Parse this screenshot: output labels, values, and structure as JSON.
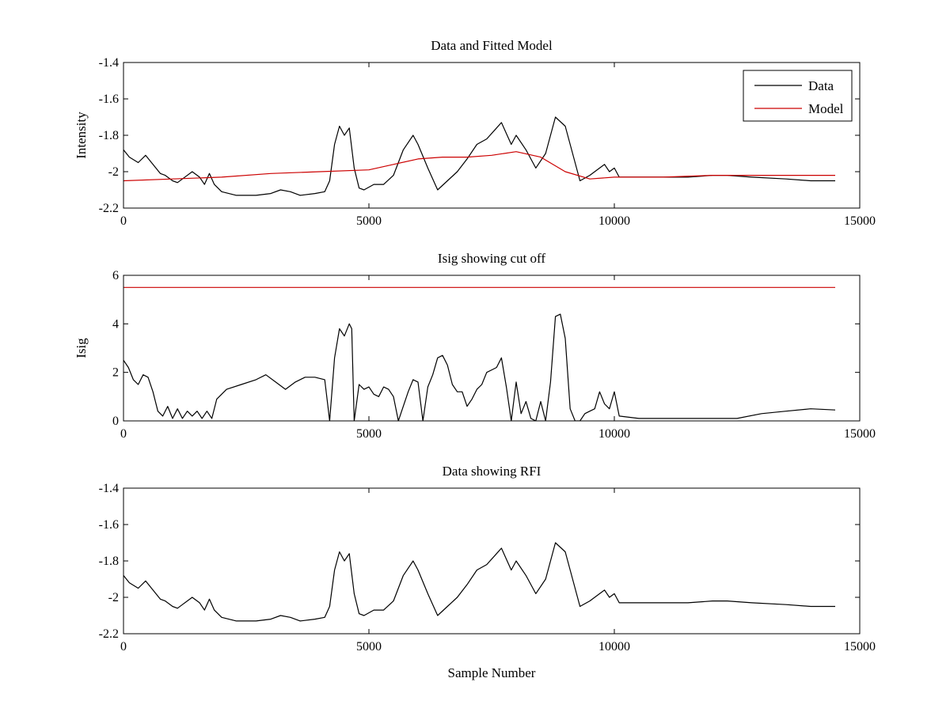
{
  "chart_data": [
    {
      "type": "line",
      "title": "Data and Fitted Model",
      "xlabel": "",
      "ylabel": "Intensity",
      "xlim": [
        0,
        15000
      ],
      "ylim": [
        -2.2,
        -1.4
      ],
      "xticks": [
        0,
        5000,
        10000,
        15000
      ],
      "yticks": [
        -2.2,
        -2,
        -1.8,
        -1.6,
        -1.4
      ],
      "xtick_labels": [
        "0",
        "5000",
        "10000",
        "15000"
      ],
      "ytick_labels": [
        "-2.2",
        "-2",
        "-1.8",
        "-1.6",
        "-1.4"
      ],
      "legend": {
        "location": "top-right",
        "entries": [
          "Data",
          "Model"
        ]
      },
      "grid": false,
      "series": [
        {
          "name": "Data",
          "color": "#000000",
          "x": [
            0,
            120,
            300,
            450,
            600,
            750,
            850,
            1000,
            1100,
            1200,
            1400,
            1550,
            1650,
            1750,
            1850,
            2000,
            2300,
            2700,
            3000,
            3200,
            3400,
            3600,
            3900,
            4100,
            4200,
            4300,
            4400,
            4500,
            4600,
            4700,
            4800,
            4900,
            5100,
            5300,
            5500,
            5700,
            5900,
            6000,
            6200,
            6400,
            6600,
            6800,
            7000,
            7200,
            7400,
            7600,
            7700,
            7800,
            7900,
            8000,
            8200,
            8400,
            8600,
            8800,
            9000,
            9100,
            9300,
            9500,
            9700,
            9800,
            9900,
            10000,
            10100,
            10500,
            11000,
            11500,
            12000,
            12300,
            12800,
            13500,
            14000,
            14500
          ],
          "y": [
            -1.88,
            -1.92,
            -1.95,
            -1.91,
            -1.96,
            -2.01,
            -2.02,
            -2.05,
            -2.06,
            -2.04,
            -2.0,
            -2.03,
            -2.07,
            -2.01,
            -2.07,
            -2.11,
            -2.13,
            -2.13,
            -2.12,
            -2.1,
            -2.11,
            -2.13,
            -2.12,
            -2.11,
            -2.05,
            -1.85,
            -1.75,
            -1.8,
            -1.76,
            -1.98,
            -2.09,
            -2.1,
            -2.07,
            -2.07,
            -2.02,
            -1.88,
            -1.8,
            -1.85,
            -1.98,
            -2.1,
            -2.05,
            -2.0,
            -1.93,
            -1.85,
            -1.82,
            -1.76,
            -1.73,
            -1.79,
            -1.85,
            -1.8,
            -1.88,
            -1.98,
            -1.9,
            -1.7,
            -1.75,
            -1.85,
            -2.05,
            -2.02,
            -1.98,
            -1.96,
            -2.0,
            -1.98,
            -2.03,
            -2.03,
            -2.03,
            -2.03,
            -2.02,
            -2.02,
            -2.03,
            -2.04,
            -2.05,
            -2.05
          ]
        },
        {
          "name": "Model",
          "color": "#cc0000",
          "x": [
            0,
            1000,
            2000,
            3000,
            4000,
            5000,
            5500,
            6000,
            6500,
            7000,
            7500,
            8000,
            8500,
            9000,
            9500,
            10000,
            11000,
            12000,
            13000,
            14500
          ],
          "y": [
            -2.05,
            -2.04,
            -2.03,
            -2.01,
            -2.0,
            -1.99,
            -1.96,
            -1.93,
            -1.92,
            -1.92,
            -1.91,
            -1.89,
            -1.92,
            -2.0,
            -2.04,
            -2.03,
            -2.03,
            -2.02,
            -2.02,
            -2.02
          ]
        }
      ]
    },
    {
      "type": "line",
      "title": "Isig showing cut off",
      "xlabel": "",
      "ylabel": "Isig",
      "xlim": [
        0,
        15000
      ],
      "ylim": [
        0,
        6
      ],
      "xticks": [
        0,
        5000,
        10000,
        15000
      ],
      "yticks": [
        0,
        2,
        4,
        6
      ],
      "xtick_labels": [
        "0",
        "5000",
        "10000",
        "15000"
      ],
      "ytick_labels": [
        "0",
        "2",
        "4",
        "6"
      ],
      "grid": false,
      "series": [
        {
          "name": "",
          "color": "#000000",
          "x": [
            0,
            100,
            200,
            300,
            400,
            500,
            600,
            700,
            800,
            900,
            1000,
            1100,
            1200,
            1300,
            1400,
            1500,
            1600,
            1700,
            1800,
            1900,
            2100,
            2400,
            2700,
            2900,
            3100,
            3300,
            3500,
            3700,
            3900,
            4100,
            4200,
            4300,
            4400,
            4500,
            4600,
            4650,
            4700,
            4800,
            4900,
            5000,
            5100,
            5200,
            5300,
            5400,
            5500,
            5600,
            5700,
            5800,
            5900,
            6000,
            6100,
            6200,
            6300,
            6400,
            6500,
            6600,
            6700,
            6800,
            6900,
            7000,
            7100,
            7200,
            7300,
            7400,
            7500,
            7600,
            7700,
            7800,
            7900,
            8000,
            8100,
            8200,
            8300,
            8400,
            8500,
            8600,
            8700,
            8800,
            8900,
            9000,
            9100,
            9200,
            9300,
            9400,
            9500,
            9600,
            9700,
            9800,
            9900,
            10000,
            10100,
            10500,
            11000,
            11500,
            12000,
            12500,
            13000,
            13500,
            14000,
            14500
          ],
          "y": [
            2.5,
            2.2,
            1.7,
            1.5,
            1.9,
            1.8,
            1.2,
            0.4,
            0.2,
            0.6,
            0.1,
            0.5,
            0.1,
            0.4,
            0.2,
            0.4,
            0.1,
            0.4,
            0.1,
            0.9,
            1.3,
            1.5,
            1.7,
            1.9,
            1.6,
            1.3,
            1.6,
            1.8,
            1.8,
            1.7,
            0.0,
            2.6,
            3.8,
            3.5,
            4.0,
            3.8,
            0.0,
            1.5,
            1.3,
            1.4,
            1.1,
            1.0,
            1.4,
            1.3,
            1.0,
            0.0,
            0.6,
            1.2,
            1.7,
            1.6,
            0.0,
            1.4,
            1.9,
            2.6,
            2.7,
            2.3,
            1.5,
            1.2,
            1.2,
            0.6,
            0.9,
            1.3,
            1.5,
            2.0,
            2.1,
            2.2,
            2.6,
            1.4,
            0.0,
            1.6,
            0.3,
            0.8,
            0.1,
            0.0,
            0.8,
            0.0,
            1.6,
            4.3,
            4.4,
            3.4,
            0.5,
            0.0,
            0.0,
            0.3,
            0.4,
            0.5,
            1.2,
            0.7,
            0.5,
            1.2,
            0.2,
            0.1,
            0.1,
            0.1,
            0.1,
            0.1,
            0.3,
            0.4,
            0.5,
            0.45
          ]
        },
        {
          "name": "",
          "color": "#cc0000",
          "x": [
            0,
            14500
          ],
          "y": [
            5.5,
            5.5
          ]
        }
      ]
    },
    {
      "type": "line",
      "title": "Data showing RFI",
      "xlabel": "Sample Number",
      "ylabel": "",
      "xlim": [
        0,
        15000
      ],
      "ylim": [
        -2.2,
        -1.4
      ],
      "xticks": [
        0,
        5000,
        10000,
        15000
      ],
      "yticks": [
        -2.2,
        -2,
        -1.8,
        -1.6,
        -1.4
      ],
      "xtick_labels": [
        "0",
        "5000",
        "10000",
        "15000"
      ],
      "ytick_labels": [
        "-2.2",
        "-2",
        "-1.8",
        "-1.6",
        "-1.4"
      ],
      "grid": false,
      "series": [
        {
          "name": "",
          "color": "#000000",
          "x": [
            0,
            120,
            300,
            450,
            600,
            750,
            850,
            1000,
            1100,
            1200,
            1400,
            1550,
            1650,
            1750,
            1850,
            2000,
            2300,
            2700,
            3000,
            3200,
            3400,
            3600,
            3900,
            4100,
            4200,
            4300,
            4400,
            4500,
            4600,
            4700,
            4800,
            4900,
            5100,
            5300,
            5500,
            5700,
            5900,
            6000,
            6200,
            6400,
            6600,
            6800,
            7000,
            7200,
            7400,
            7600,
            7700,
            7800,
            7900,
            8000,
            8200,
            8400,
            8600,
            8800,
            9000,
            9100,
            9300,
            9500,
            9700,
            9800,
            9900,
            10000,
            10100,
            10500,
            11000,
            11500,
            12000,
            12300,
            12800,
            13500,
            14000,
            14500
          ],
          "y": [
            -1.88,
            -1.92,
            -1.95,
            -1.91,
            -1.96,
            -2.01,
            -2.02,
            -2.05,
            -2.06,
            -2.04,
            -2.0,
            -2.03,
            -2.07,
            -2.01,
            -2.07,
            -2.11,
            -2.13,
            -2.13,
            -2.12,
            -2.1,
            -2.11,
            -2.13,
            -2.12,
            -2.11,
            -2.05,
            -1.85,
            -1.75,
            -1.8,
            -1.76,
            -1.98,
            -2.09,
            -2.1,
            -2.07,
            -2.07,
            -2.02,
            -1.88,
            -1.8,
            -1.85,
            -1.98,
            -2.1,
            -2.05,
            -2.0,
            -1.93,
            -1.85,
            -1.82,
            -1.76,
            -1.73,
            -1.79,
            -1.85,
            -1.8,
            -1.88,
            -1.98,
            -1.9,
            -1.7,
            -1.75,
            -1.85,
            -2.05,
            -2.02,
            -1.98,
            -1.96,
            -2.0,
            -1.98,
            -2.03,
            -2.03,
            -2.03,
            -2.03,
            -2.02,
            -2.02,
            -2.03,
            -2.04,
            -2.05,
            -2.05
          ]
        }
      ]
    }
  ]
}
